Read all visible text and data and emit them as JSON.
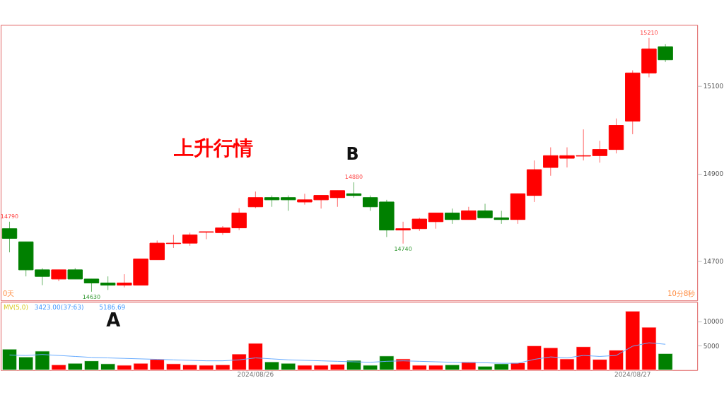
{
  "chart_data": [
    {
      "type": "candlestick",
      "categories": [
        null,
        null,
        null,
        null,
        null,
        null,
        null,
        null,
        null,
        null,
        null,
        null,
        null,
        null,
        null,
        "2024/08/26",
        null,
        null,
        null,
        null,
        null,
        null,
        null,
        null,
        null,
        null,
        null,
        null,
        null,
        null,
        null,
        null,
        null,
        null,
        null,
        null,
        null,
        null,
        "2024/08/27",
        null,
        null
      ],
      "ohlc": [
        [
          14774,
          14790,
          14720,
          14752
        ],
        [
          14744,
          14744,
          14665,
          14680
        ],
        [
          14680,
          14684,
          14645,
          14665
        ],
        [
          14659,
          14680,
          14654,
          14680
        ],
        [
          14680,
          14684,
          14659,
          14659
        ],
        [
          14659,
          14659,
          14630,
          14650
        ],
        [
          14650,
          14665,
          14634,
          14645
        ],
        [
          14645,
          14670,
          14640,
          14650
        ],
        [
          14645,
          14705,
          14645,
          14705
        ],
        [
          14703,
          14747,
          14703,
          14741
        ],
        [
          14740,
          14760,
          14730,
          14741
        ],
        [
          14741,
          14765,
          14735,
          14760
        ],
        [
          14766,
          14767,
          14750,
          14767
        ],
        [
          14765,
          14780,
          14760,
          14776
        ],
        [
          14776,
          14821,
          14771,
          14810
        ],
        [
          14824,
          14859,
          14821,
          14845
        ],
        [
          14845,
          14850,
          14824,
          14840
        ],
        [
          14845,
          14850,
          14815,
          14840
        ],
        [
          14835,
          14854,
          14829,
          14840
        ],
        [
          14840,
          14850,
          14820,
          14850
        ],
        [
          14845,
          14861,
          14824,
          14861
        ],
        [
          14854,
          14880,
          14845,
          14850
        ],
        [
          14845,
          14850,
          14815,
          14824
        ],
        [
          14835,
          14840,
          14755,
          14771
        ],
        [
          14771,
          14790,
          14740,
          14774
        ],
        [
          14774,
          14799,
          14769,
          14796
        ],
        [
          14790,
          14810,
          14774,
          14810
        ],
        [
          14810,
          14820,
          14785,
          14795
        ],
        [
          14795,
          14824,
          14795,
          14815
        ],
        [
          14815,
          14831,
          14799,
          14799
        ],
        [
          14799,
          14815,
          14785,
          14795
        ],
        [
          14795,
          14854,
          14785,
          14854
        ],
        [
          14850,
          14930,
          14835,
          14909
        ],
        [
          14914,
          14960,
          14895,
          14941
        ],
        [
          14935,
          14960,
          14914,
          14941
        ],
        [
          14940,
          15001,
          14930,
          14941
        ],
        [
          14941,
          14975,
          14925,
          14955
        ],
        [
          14955,
          15026,
          14946,
          15010
        ],
        [
          15020,
          15136,
          14990,
          15130
        ],
        [
          15130,
          15210,
          15120,
          15185
        ],
        [
          15190,
          15196,
          15155,
          15160
        ]
      ],
      "colors": [
        "#008000",
        "#008000",
        "#008000",
        "#ff0000",
        "#008000",
        "#008000",
        "#008000",
        "#ff0000",
        "#ff0000",
        "#ff0000",
        "#ff0000",
        "#ff0000",
        "#ff0000",
        "#ff0000",
        "#ff0000",
        "#ff0000",
        "#008000",
        "#008000",
        "#ff0000",
        "#ff0000",
        "#ff0000",
        "#008000",
        "#008000",
        "#008000",
        "#ff0000",
        "#ff0000",
        "#ff0000",
        "#008000",
        "#ff0000",
        "#008000",
        "#008000",
        "#ff0000",
        "#ff0000",
        "#ff0000",
        "#ff0000",
        "#ff0000",
        "#ff0000",
        "#ff0000",
        "#ff0000",
        "#ff0000",
        "#008000"
      ],
      "ylim": [
        14610,
        15240
      ],
      "yticks": [
        14700,
        14900,
        15100
      ],
      "tick_labels": "y",
      "annotations": [
        "上升行情",
        "B",
        "0天",
        "10分8秒",
        {
          "text": "14790",
          "y": 14790
        },
        {
          "text": "14630",
          "y": 14630
        },
        {
          "text": "14880",
          "y": 14880
        },
        {
          "text": "14740",
          "y": 14740
        },
        {
          "text": "15210",
          "y": 15210
        }
      ]
    },
    {
      "type": "bar",
      "categories": [
        null,
        null,
        null,
        null,
        null,
        null,
        null,
        null,
        null,
        null,
        null,
        null,
        null,
        null,
        null,
        "2024/08/26",
        null,
        null,
        null,
        null,
        null,
        null,
        null,
        null,
        null,
        null,
        null,
        null,
        null,
        null,
        null,
        null,
        null,
        null,
        null,
        null,
        null,
        null,
        "2024/08/27",
        null,
        null
      ],
      "series": [
        {
          "type": "bar",
          "values": [
            4300,
            2700,
            3900,
            1100,
            1400,
            1900,
            1300,
            1000,
            1400,
            2200,
            1300,
            1100,
            1000,
            1100,
            3300,
            5500,
            1700,
            1400,
            1000,
            1000,
            1200,
            2000,
            1000,
            2900,
            2300,
            1000,
            1000,
            1100,
            1700,
            800,
            1300,
            1500,
            5000,
            4600,
            2300,
            4800,
            2200,
            4100,
            12100,
            8800,
            3400
          ],
          "colors": [
            "#008000",
            "#008000",
            "#008000",
            "#ff0000",
            "#008000",
            "#008000",
            "#008000",
            "#ff0000",
            "#ff0000",
            "#ff0000",
            "#ff0000",
            "#ff0000",
            "#ff0000",
            "#ff0000",
            "#ff0000",
            "#ff0000",
            "#008000",
            "#008000",
            "#ff0000",
            "#ff0000",
            "#ff0000",
            "#008000",
            "#008000",
            "#008000",
            "#ff0000",
            "#ff0000",
            "#ff0000",
            "#008000",
            "#ff0000",
            "#008000",
            "#008000",
            "#ff0000",
            "#ff0000",
            "#ff0000",
            "#ff0000",
            "#ff0000",
            "#ff0000",
            "#ff0000",
            "#ff0000",
            "#ff0000",
            "#008000"
          ]
        },
        {
          "type": "line",
          "color": "#66aaff",
          "values": [
            3100,
            3000,
            3200,
            3000,
            2800,
            2600,
            2500,
            2400,
            2300,
            2200,
            2100,
            2000,
            1900,
            1900,
            2100,
            2500,
            2300,
            2100,
            2000,
            1900,
            1800,
            1700,
            1600,
            1800,
            1900,
            1800,
            1700,
            1600,
            1500,
            1500,
            1400,
            1400,
            2200,
            2700,
            2500,
            3000,
            2800,
            3000,
            4900,
            5600,
            5300
          ]
        }
      ],
      "ylim": [
        0,
        14000
      ],
      "yticks": [
        5000,
        10000
      ],
      "annotations": [
        "A",
        "MV(5,0)",
        "3423.00(37:63)",
        "5186.69"
      ]
    }
  ]
}
